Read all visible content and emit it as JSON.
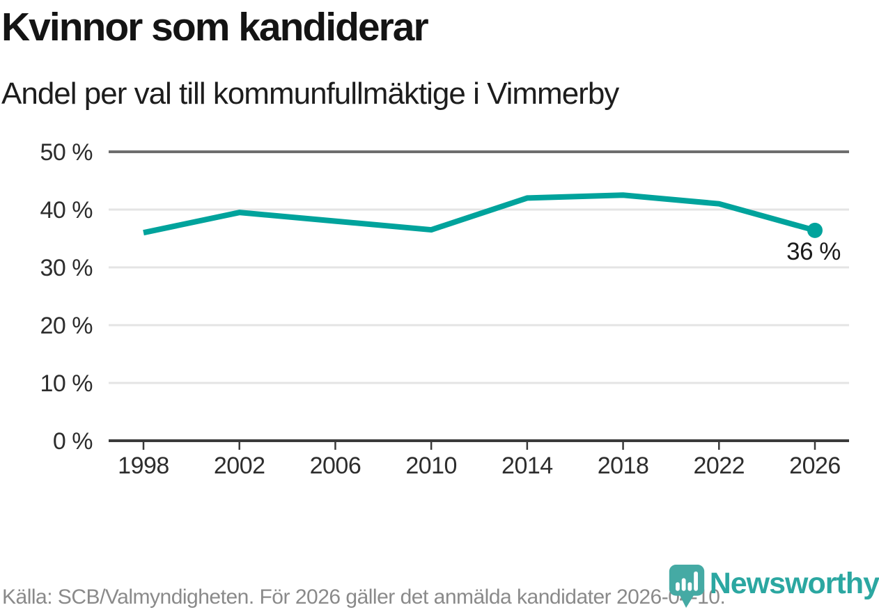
{
  "header": {
    "title": "Kvinnor som kandiderar",
    "subtitle": "Andel per val till kommunfullmäktige i Vimmerby"
  },
  "chart_data": {
    "type": "line",
    "title": "Kvinnor som kandiderar",
    "subtitle": "Andel per val till kommunfullmäktige i Vimmerby",
    "categories": [
      "1998",
      "2002",
      "2006",
      "2010",
      "2014",
      "2018",
      "2022",
      "2026"
    ],
    "values": [
      36,
      39.5,
      38,
      36.5,
      42,
      42.5,
      41,
      36.4
    ],
    "ylim": [
      0,
      50
    ],
    "yticks": [
      0,
      10,
      20,
      30,
      40,
      50
    ],
    "ytick_suffix": " %",
    "end_label": "36 %",
    "grid": "horizontal",
    "legend": "none",
    "xlabel": "",
    "ylabel": ""
  },
  "footer": {
    "source": "Källa: SCB/Valmyndigheten. För 2026 gäller det anmälda kandidater 2026-04-10."
  },
  "branding": {
    "logo_text": "Newsworthy",
    "logo_icon": "bar-chart-speech-bubble-icon"
  },
  "colors": {
    "line": "#00a39c",
    "grid": "#e4e4e4",
    "top_rule": "#6e6e6e",
    "axis": "#3a3a3a",
    "tick_label": "#2d2d2d",
    "annotation": "#1a1a1a",
    "title_text": "#141414",
    "subtitle_text": "#1d1d1d",
    "footer_text": "#8a8a8a",
    "logo_icon": "#45aaa4",
    "logo_wordmark": "#2ba7a1"
  }
}
